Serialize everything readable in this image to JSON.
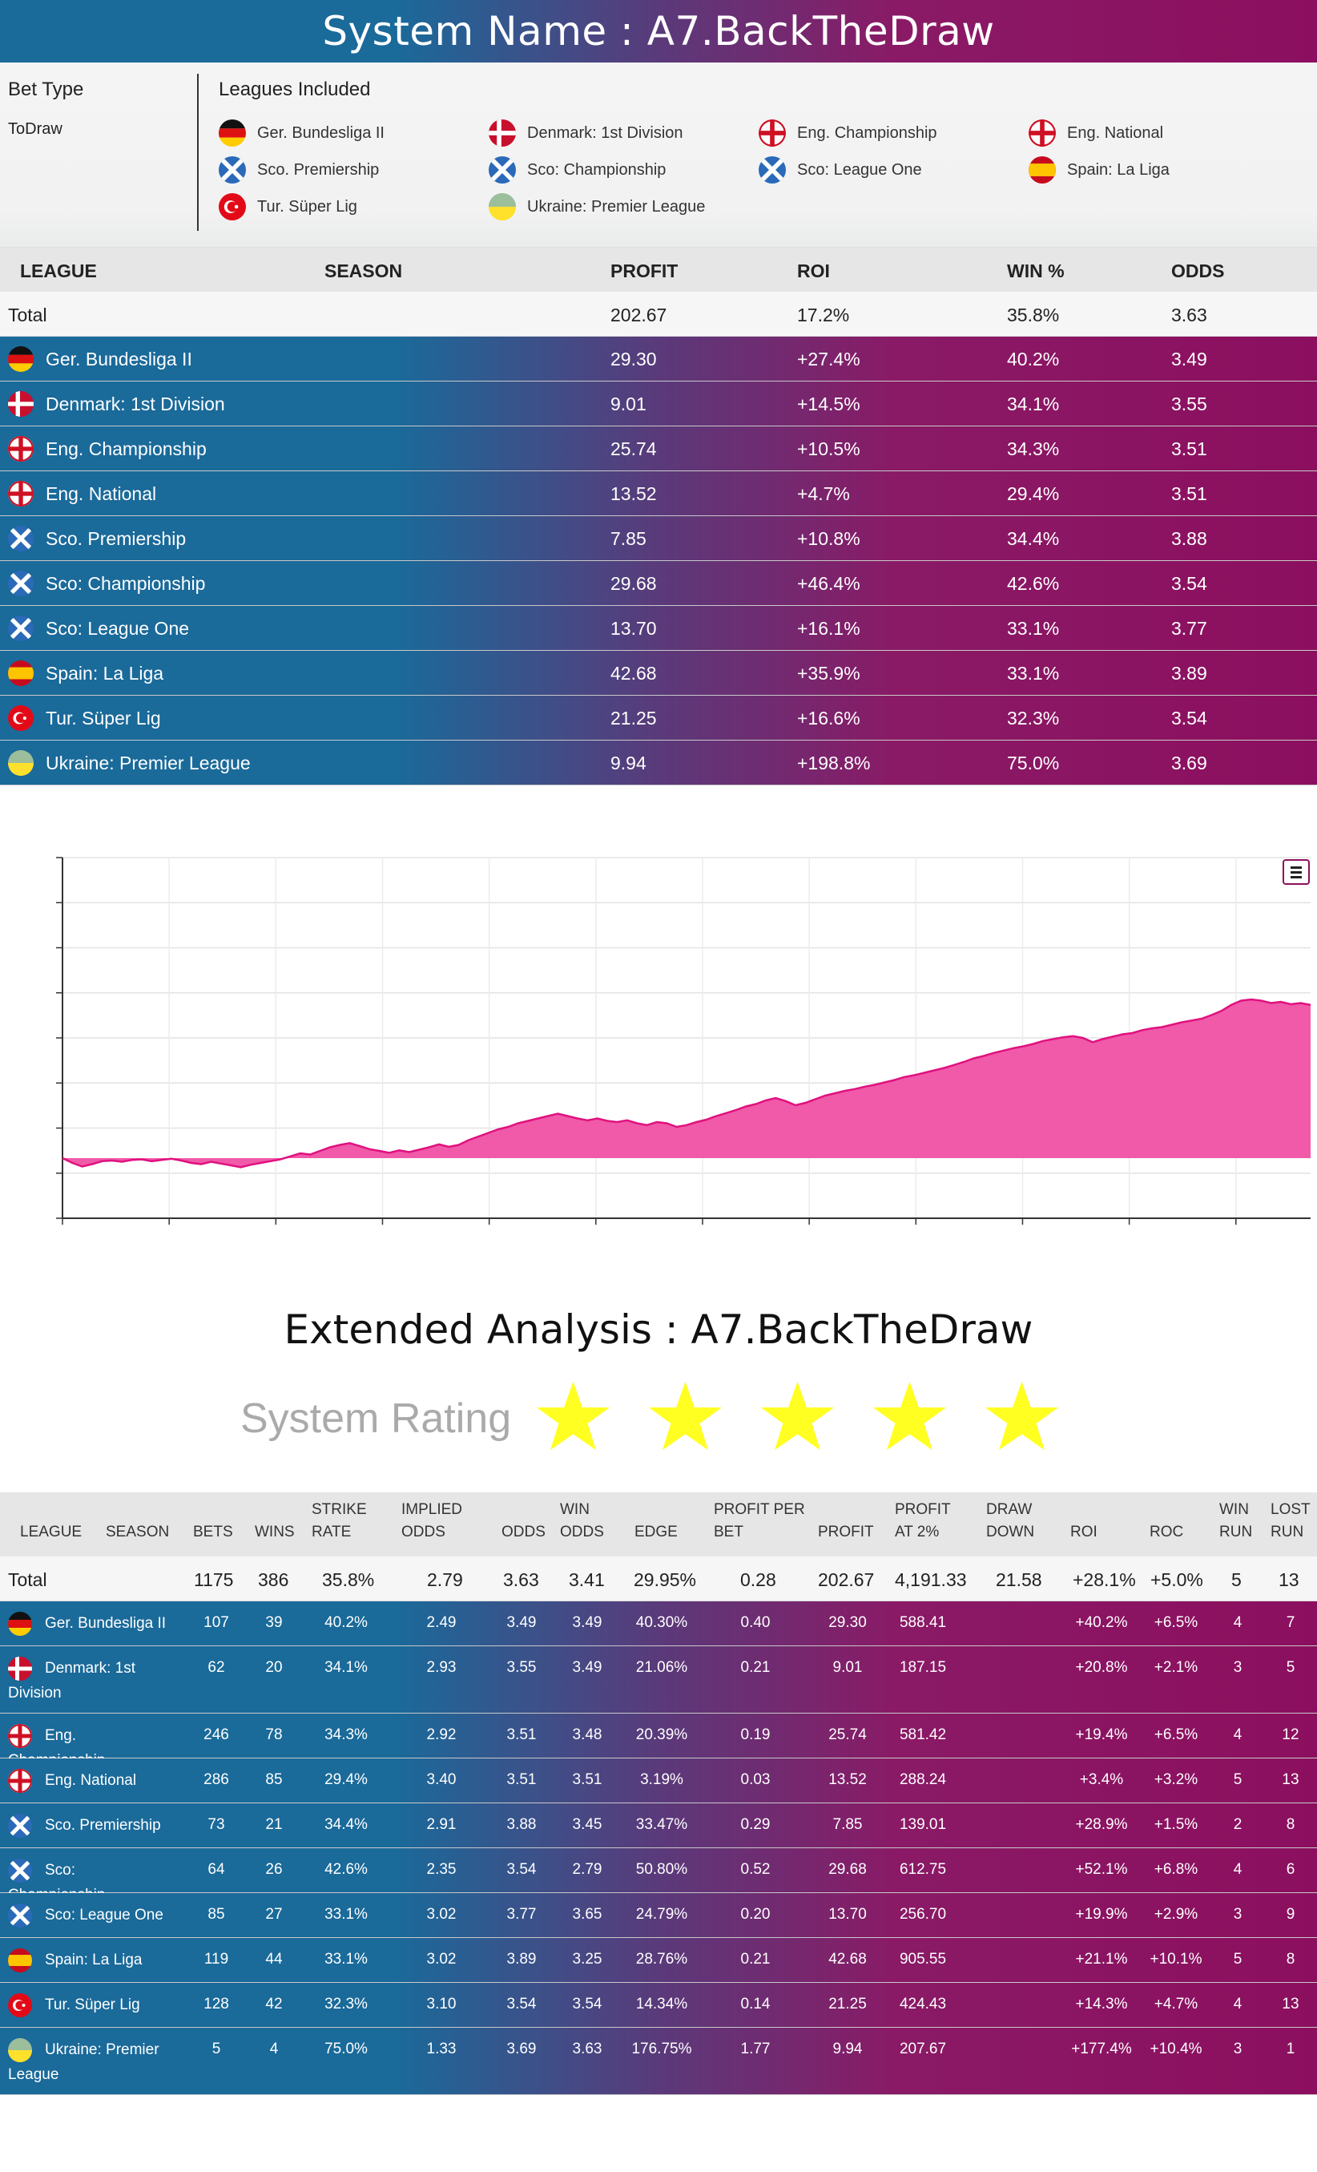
{
  "header": {
    "title": "System Name : A7.BackTheDraw"
  },
  "info": {
    "bet_type_label": "Bet Type",
    "bet_type_value": "ToDraw",
    "leagues_label": "Leagues Included",
    "leagues": [
      {
        "name": "Ger. Bundesliga II",
        "flag": "germany-flag"
      },
      {
        "name": "Denmark: 1st Division",
        "flag": "denmark-flag"
      },
      {
        "name": "Eng. Championship",
        "flag": "england-flag"
      },
      {
        "name": "Eng. National",
        "flag": "england-flag"
      },
      {
        "name": "Sco. Premiership",
        "flag": "scotland-flag"
      },
      {
        "name": "Sco: Championship",
        "flag": "scotland-flag"
      },
      {
        "name": "Sco: League One",
        "flag": "scotland-flag"
      },
      {
        "name": "Spain: La Liga",
        "flag": "spain-flag"
      },
      {
        "name": "Tur. Süper Lig",
        "flag": "turkey-flag"
      },
      {
        "name": "Ukraine: Premier League",
        "flag": "ukraine-flag"
      }
    ]
  },
  "summary": {
    "headers": {
      "league": "LEAGUE",
      "season": "SEASON",
      "profit": "PROFIT",
      "roi": "ROI",
      "win": "WIN %",
      "odds": "ODDS"
    },
    "total": {
      "league": "Total",
      "profit": "202.67",
      "roi": "17.2%",
      "win": "35.8%",
      "odds": "3.63"
    },
    "rows": [
      {
        "league": "Ger. Bundesliga II",
        "flag": "germany-flag",
        "profit": "29.30",
        "roi": "+27.4%",
        "win": "40.2%",
        "odds": "3.49"
      },
      {
        "league": "Denmark: 1st Division",
        "flag": "denmark-flag",
        "profit": "9.01",
        "roi": "+14.5%",
        "win": "34.1%",
        "odds": "3.55"
      },
      {
        "league": "Eng. Championship",
        "flag": "england-flag",
        "profit": "25.74",
        "roi": "+10.5%",
        "win": "34.3%",
        "odds": "3.51"
      },
      {
        "league": "Eng. National",
        "flag": "england-flag",
        "profit": "13.52",
        "roi": "+4.7%",
        "win": "29.4%",
        "odds": "3.51"
      },
      {
        "league": "Sco. Premiership",
        "flag": "scotland-flag",
        "profit": "7.85",
        "roi": "+10.8%",
        "win": "34.4%",
        "odds": "3.88"
      },
      {
        "league": "Sco: Championship",
        "flag": "scotland-flag",
        "profit": "29.68",
        "roi": "+46.4%",
        "win": "42.6%",
        "odds": "3.54"
      },
      {
        "league": "Sco: League One",
        "flag": "scotland-flag",
        "profit": "13.70",
        "roi": "+16.1%",
        "win": "33.1%",
        "odds": "3.77"
      },
      {
        "league": "Spain: La Liga",
        "flag": "spain-flag",
        "profit": "42.68",
        "roi": "+35.9%",
        "win": "33.1%",
        "odds": "3.89"
      },
      {
        "league": "Tur. Süper Lig",
        "flag": "turkey-flag",
        "profit": "21.25",
        "roi": "+16.6%",
        "win": "32.3%",
        "odds": "3.54"
      },
      {
        "league": "Ukraine: Premier League",
        "flag": "ukraine-flag",
        "profit": "9.94",
        "roi": "+198.8%",
        "win": "75.0%",
        "odds": "3.69"
      }
    ]
  },
  "chart_data": {
    "type": "area",
    "title": "",
    "xlabel": "",
    "ylabel": "",
    "grid": true,
    "fill_color": "#f05aa8",
    "stroke_color": "#e0117f",
    "series": [
      {
        "values": [
          0,
          -8,
          -14,
          -10,
          -5,
          -4,
          -6,
          -3,
          -2,
          -5,
          -3,
          -1,
          -4,
          -8,
          -10,
          -6,
          -9,
          -12,
          -15,
          -11,
          -8,
          -5,
          -2,
          3,
          8,
          6,
          12,
          18,
          22,
          25,
          20,
          15,
          12,
          9,
          13,
          10,
          14,
          18,
          23,
          19,
          22,
          30,
          36,
          42,
          48,
          52,
          58,
          62,
          66,
          70,
          74,
          70,
          66,
          63,
          66,
          62,
          60,
          63,
          58,
          55,
          60,
          58,
          52,
          55,
          60,
          64,
          70,
          75,
          80,
          86,
          90,
          96,
          100,
          95,
          88,
          92,
          98,
          104,
          108,
          112,
          115,
          119,
          122,
          126,
          130,
          135,
          138,
          142,
          146,
          150,
          155,
          160,
          166,
          170,
          175,
          179,
          183,
          186,
          190,
          195,
          198,
          201,
          203,
          200,
          193,
          198,
          202,
          206,
          208,
          213,
          216,
          218,
          222,
          226,
          229,
          232,
          238,
          245,
          255,
          262,
          264,
          262,
          258,
          260,
          256,
          258,
          255
        ]
      }
    ],
    "ylim": [
      -100,
      500
    ]
  },
  "extended": {
    "title": "Extended Analysis : A7.BackTheDraw",
    "rating_label": "System Rating",
    "rating_stars": 5,
    "star_color": "#ffff22",
    "headers": {
      "league": "LEAGUE",
      "season": "SEASON",
      "bets": "BETS",
      "wins": "WINS",
      "strike_1": "STRIKE",
      "strike_2": "RATE",
      "implied_1": "IMPLIED",
      "implied_2": "ODDS",
      "odds": "ODDS",
      "winodds_1": "WIN",
      "winodds_2": "ODDS",
      "edge": "EDGE",
      "ppb_1": "PROFIT PER",
      "ppb_2": "BET",
      "profit": "PROFIT",
      "p2_1": "PROFIT",
      "p2_2": "AT 2%",
      "dd_1": "DRAW",
      "dd_2": "DOWN",
      "roi": "ROI",
      "roc": "ROC",
      "wr_1": "WIN",
      "wr_2": "RUN",
      "lr_1": "LOST",
      "lr_2": "RUN"
    },
    "total": {
      "league": "Total",
      "bets": "1175",
      "wins": "386",
      "strike": "35.8%",
      "implied": "2.79",
      "odds": "3.63",
      "winodds": "3.41",
      "edge": "29.95%",
      "ppb": "0.28",
      "profit": "202.67",
      "p2": "4,191.33",
      "dd": "21.58",
      "roi": "+28.1%",
      "roc": "+5.0%",
      "wr": "5",
      "lr": "13"
    },
    "rows": [
      {
        "league": "Ger. Bundesliga II",
        "flag": "germany-flag",
        "bets": "107",
        "wins": "39",
        "strike": "40.2%",
        "implied": "2.49",
        "odds": "3.49",
        "winodds": "3.49",
        "edge": "40.30%",
        "ppb": "0.40",
        "profit": "29.30",
        "p2": "588.41",
        "roi": "+40.2%",
        "roc": "+6.5%",
        "wr": "4",
        "lr": "7"
      },
      {
        "league": "Denmark: 1st Division",
        "flag": "denmark-flag",
        "bets": "62",
        "wins": "20",
        "strike": "34.1%",
        "implied": "2.93",
        "odds": "3.55",
        "winodds": "3.49",
        "edge": "21.06%",
        "ppb": "0.21",
        "profit": "9.01",
        "p2": "187.15",
        "roi": "+20.8%",
        "roc": "+2.1%",
        "wr": "3",
        "lr": "5"
      },
      {
        "league": "Eng. Championship",
        "flag": "england-flag",
        "bets": "246",
        "wins": "78",
        "strike": "34.3%",
        "implied": "2.92",
        "odds": "3.51",
        "winodds": "3.48",
        "edge": "20.39%",
        "ppb": "0.19",
        "profit": "25.74",
        "p2": "581.42",
        "roi": "+19.4%",
        "roc": "+6.5%",
        "wr": "4",
        "lr": "12"
      },
      {
        "league": "Eng. National",
        "flag": "england-flag",
        "bets": "286",
        "wins": "85",
        "strike": "29.4%",
        "implied": "3.40",
        "odds": "3.51",
        "winodds": "3.51",
        "edge": "3.19%",
        "ppb": "0.03",
        "profit": "13.52",
        "p2": "288.24",
        "roi": "+3.4%",
        "roc": "+3.2%",
        "wr": "5",
        "lr": "13"
      },
      {
        "league": "Sco. Premiership",
        "flag": "scotland-flag",
        "bets": "73",
        "wins": "21",
        "strike": "34.4%",
        "implied": "2.91",
        "odds": "3.88",
        "winodds": "3.45",
        "edge": "33.47%",
        "ppb": "0.29",
        "profit": "7.85",
        "p2": "139.01",
        "roi": "+28.9%",
        "roc": "+1.5%",
        "wr": "2",
        "lr": "8"
      },
      {
        "league": "Sco: Championship",
        "flag": "scotland-flag",
        "bets": "64",
        "wins": "26",
        "strike": "42.6%",
        "implied": "2.35",
        "odds": "3.54",
        "winodds": "2.79",
        "edge": "50.80%",
        "ppb": "0.52",
        "profit": "29.68",
        "p2": "612.75",
        "roi": "+52.1%",
        "roc": "+6.8%",
        "wr": "4",
        "lr": "6"
      },
      {
        "league": "Sco: League One",
        "flag": "scotland-flag",
        "bets": "85",
        "wins": "27",
        "strike": "33.1%",
        "implied": "3.02",
        "odds": "3.77",
        "winodds": "3.65",
        "edge": "24.79%",
        "ppb": "0.20",
        "profit": "13.70",
        "p2": "256.70",
        "roi": "+19.9%",
        "roc": "+2.9%",
        "wr": "3",
        "lr": "9"
      },
      {
        "league": "Spain: La Liga",
        "flag": "spain-flag",
        "bets": "119",
        "wins": "44",
        "strike": "33.1%",
        "implied": "3.02",
        "odds": "3.89",
        "winodds": "3.25",
        "edge": "28.76%",
        "ppb": "0.21",
        "profit": "42.68",
        "p2": "905.55",
        "roi": "+21.1%",
        "roc": "+10.1%",
        "wr": "5",
        "lr": "8"
      },
      {
        "league": "Tur. Süper Lig",
        "flag": "turkey-flag",
        "bets": "128",
        "wins": "42",
        "strike": "32.3%",
        "implied": "3.10",
        "odds": "3.54",
        "winodds": "3.54",
        "edge": "14.34%",
        "ppb": "0.14",
        "profit": "21.25",
        "p2": "424.43",
        "roi": "+14.3%",
        "roc": "+4.7%",
        "wr": "4",
        "lr": "13"
      },
      {
        "league": "Ukraine: Premier League",
        "flag": "ukraine-flag",
        "bets": "5",
        "wins": "4",
        "strike": "75.0%",
        "implied": "1.33",
        "odds": "3.69",
        "winodds": "3.63",
        "edge": "176.75%",
        "ppb": "1.77",
        "profit": "9.94",
        "p2": "207.67",
        "roi": "+177.4%",
        "roc": "+10.4%",
        "wr": "3",
        "lr": "1"
      }
    ]
  }
}
